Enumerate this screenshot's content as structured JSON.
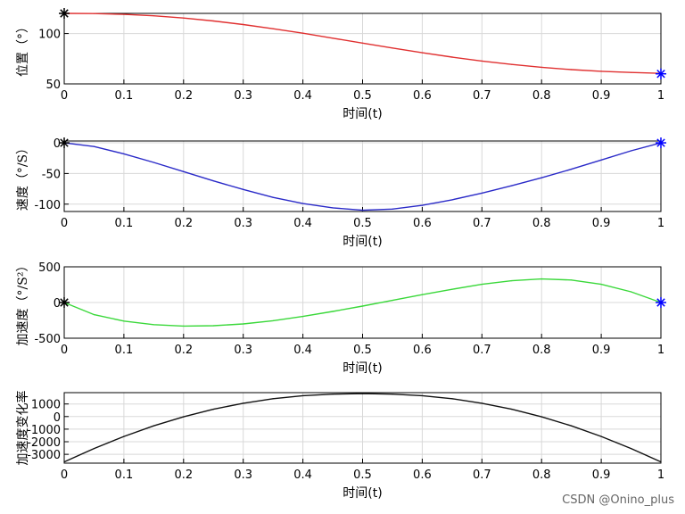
{
  "chart_data": [
    {
      "type": "line",
      "xlabel": "时间(t)",
      "ylabel": "位置（°）",
      "xlim": [
        0,
        1
      ],
      "ylim": [
        50,
        120
      ],
      "xticks": [
        0,
        0.1,
        0.2,
        0.3,
        0.4,
        0.5,
        0.6,
        0.7,
        0.8,
        0.9,
        1
      ],
      "yticks": [
        50,
        100
      ],
      "grid": true,
      "color": "#e03030",
      "x": [
        0,
        0.05,
        0.1,
        0.15,
        0.2,
        0.25,
        0.3,
        0.35,
        0.4,
        0.45,
        0.5,
        0.55,
        0.6,
        0.65,
        0.7,
        0.75,
        0.8,
        0.85,
        0.9,
        0.95,
        1
      ],
      "values": [
        120,
        119.8,
        119,
        117.6,
        115.4,
        112.5,
        108.9,
        104.8,
        100.3,
        95.4,
        90.5,
        85.6,
        80.9,
        76.6,
        72.7,
        69.3,
        66.5,
        64.2,
        62.5,
        61.3,
        60.5
      ],
      "markers": [
        {
          "x": 0,
          "y": 120,
          "symbol": "*",
          "color": "#000000"
        },
        {
          "x": 1,
          "y": 60,
          "symbol": "*",
          "color": "#0000ff"
        }
      ]
    },
    {
      "type": "line",
      "xlabel": "时间(t)",
      "ylabel": "速度（°/S）",
      "xlim": [
        0,
        1
      ],
      "ylim": [
        -112,
        3
      ],
      "xticks": [
        0,
        0.1,
        0.2,
        0.3,
        0.4,
        0.5,
        0.6,
        0.7,
        0.8,
        0.9,
        1
      ],
      "yticks": [
        -100,
        -50,
        0
      ],
      "grid": true,
      "color": "#2a2ac8",
      "x": [
        0,
        0.05,
        0.1,
        0.15,
        0.2,
        0.25,
        0.3,
        0.35,
        0.4,
        0.45,
        0.5,
        0.55,
        0.6,
        0.65,
        0.7,
        0.75,
        0.8,
        0.85,
        0.9,
        0.95,
        1
      ],
      "values": [
        0,
        -6,
        -18,
        -32,
        -47,
        -62,
        -76,
        -89,
        -99,
        -106,
        -110,
        -108,
        -102,
        -93,
        -82,
        -70,
        -57,
        -43,
        -28,
        -13,
        0
      ],
      "markers": [
        {
          "x": 0,
          "y": 0,
          "symbol": "*",
          "color": "#000000"
        },
        {
          "x": 1,
          "y": 0,
          "symbol": "*",
          "color": "#0000ff"
        }
      ]
    },
    {
      "type": "line",
      "xlabel": "时间(t)",
      "ylabel": "加速度（°/S²）",
      "xlim": [
        0,
        1
      ],
      "ylim": [
        -500,
        500
      ],
      "xticks": [
        0,
        0.1,
        0.2,
        0.3,
        0.4,
        0.5,
        0.6,
        0.7,
        0.8,
        0.9,
        1
      ],
      "yticks": [
        -500,
        0,
        500
      ],
      "grid": true,
      "color": "#3ad83a",
      "x": [
        0,
        0.05,
        0.1,
        0.15,
        0.2,
        0.25,
        0.3,
        0.35,
        0.4,
        0.45,
        0.5,
        0.55,
        0.6,
        0.65,
        0.7,
        0.75,
        0.8,
        0.85,
        0.9,
        0.95,
        1
      ],
      "values": [
        0,
        -170,
        -260,
        -310,
        -330,
        -325,
        -300,
        -255,
        -195,
        -125,
        -50,
        30,
        110,
        185,
        255,
        305,
        330,
        315,
        255,
        150,
        0
      ],
      "markers": [
        {
          "x": 0,
          "y": 0,
          "symbol": "*",
          "color": "#000000"
        },
        {
          "x": 1,
          "y": 0,
          "symbol": "*",
          "color": "#0000ff"
        }
      ]
    },
    {
      "type": "line",
      "xlabel": "时间(t)",
      "ylabel": "加速度变化率",
      "xlim": [
        0,
        1
      ],
      "ylim": [
        -3700,
        1900
      ],
      "xticks": [
        0,
        0.1,
        0.2,
        0.3,
        0.4,
        0.5,
        0.6,
        0.7,
        0.8,
        0.9,
        1
      ],
      "yticks": [
        -3000,
        -2000,
        -1000,
        0,
        1000
      ],
      "grid": true,
      "color": "#111111",
      "x": [
        0,
        0.05,
        0.1,
        0.15,
        0.2,
        0.25,
        0.3,
        0.35,
        0.4,
        0.45,
        0.5,
        0.55,
        0.6,
        0.65,
        0.7,
        0.75,
        0.8,
        0.85,
        0.9,
        0.95,
        1
      ],
      "values": [
        -3600,
        -2540,
        -1580,
        -740,
        -20,
        580,
        1060,
        1420,
        1660,
        1780,
        1820,
        1780,
        1660,
        1420,
        1060,
        580,
        -20,
        -740,
        -1580,
        -2540,
        -3600
      ]
    }
  ],
  "watermark": "CSDN @Onino_plus"
}
